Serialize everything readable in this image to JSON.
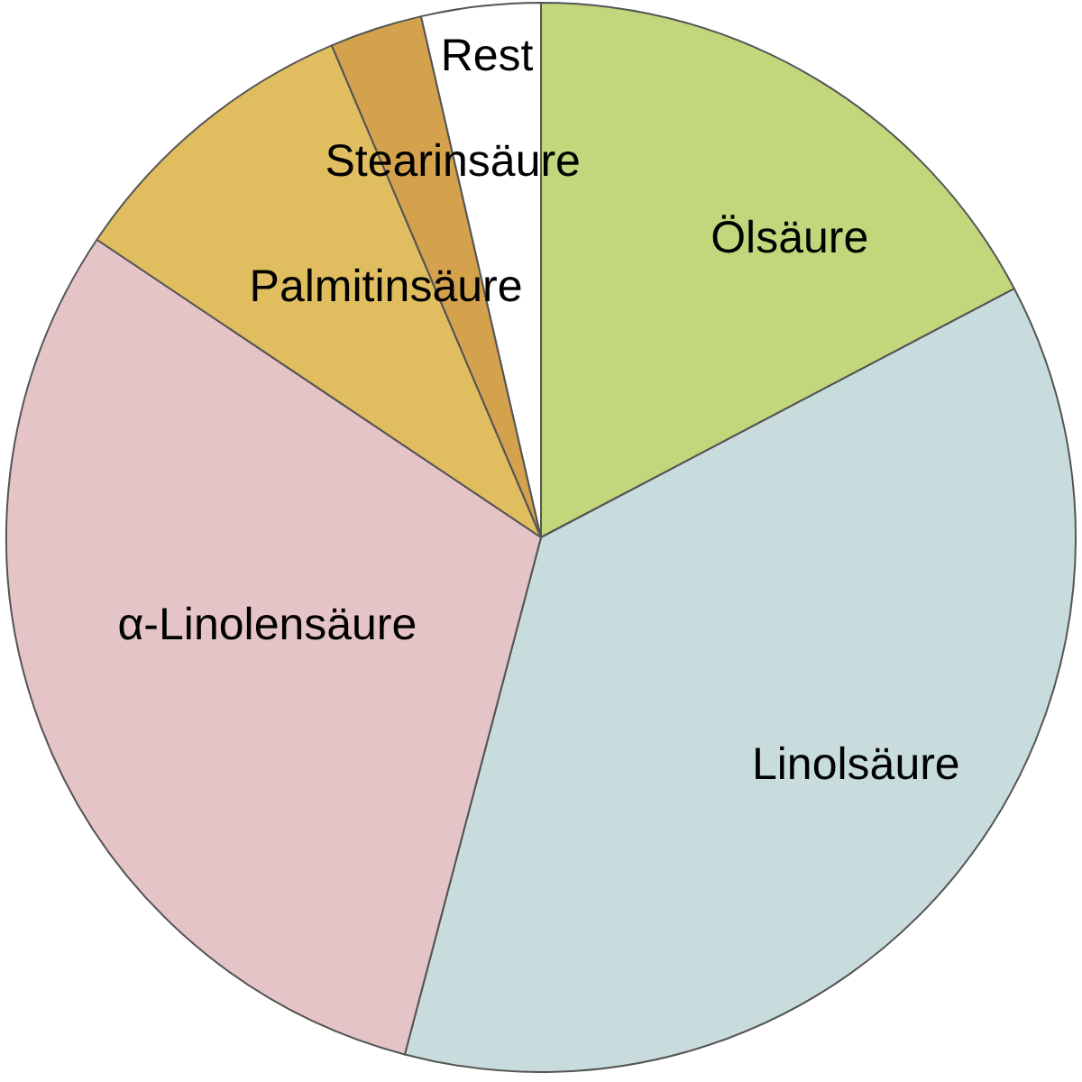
{
  "chart_data": {
    "type": "pie",
    "categories": [
      "Ölsäure",
      "Linolsäure",
      "α-Linolensäure",
      "Palmitinsäure",
      "Stearinsäure",
      "Rest"
    ],
    "values": [
      17.3,
      36.8,
      30.3,
      9.2,
      2.8,
      3.6
    ],
    "colors": [
      "#c2d67c",
      "#c9dcdd",
      "#e5c4c8",
      "#e0bd5e",
      "#d4a24c",
      "#ffffff"
    ]
  }
}
